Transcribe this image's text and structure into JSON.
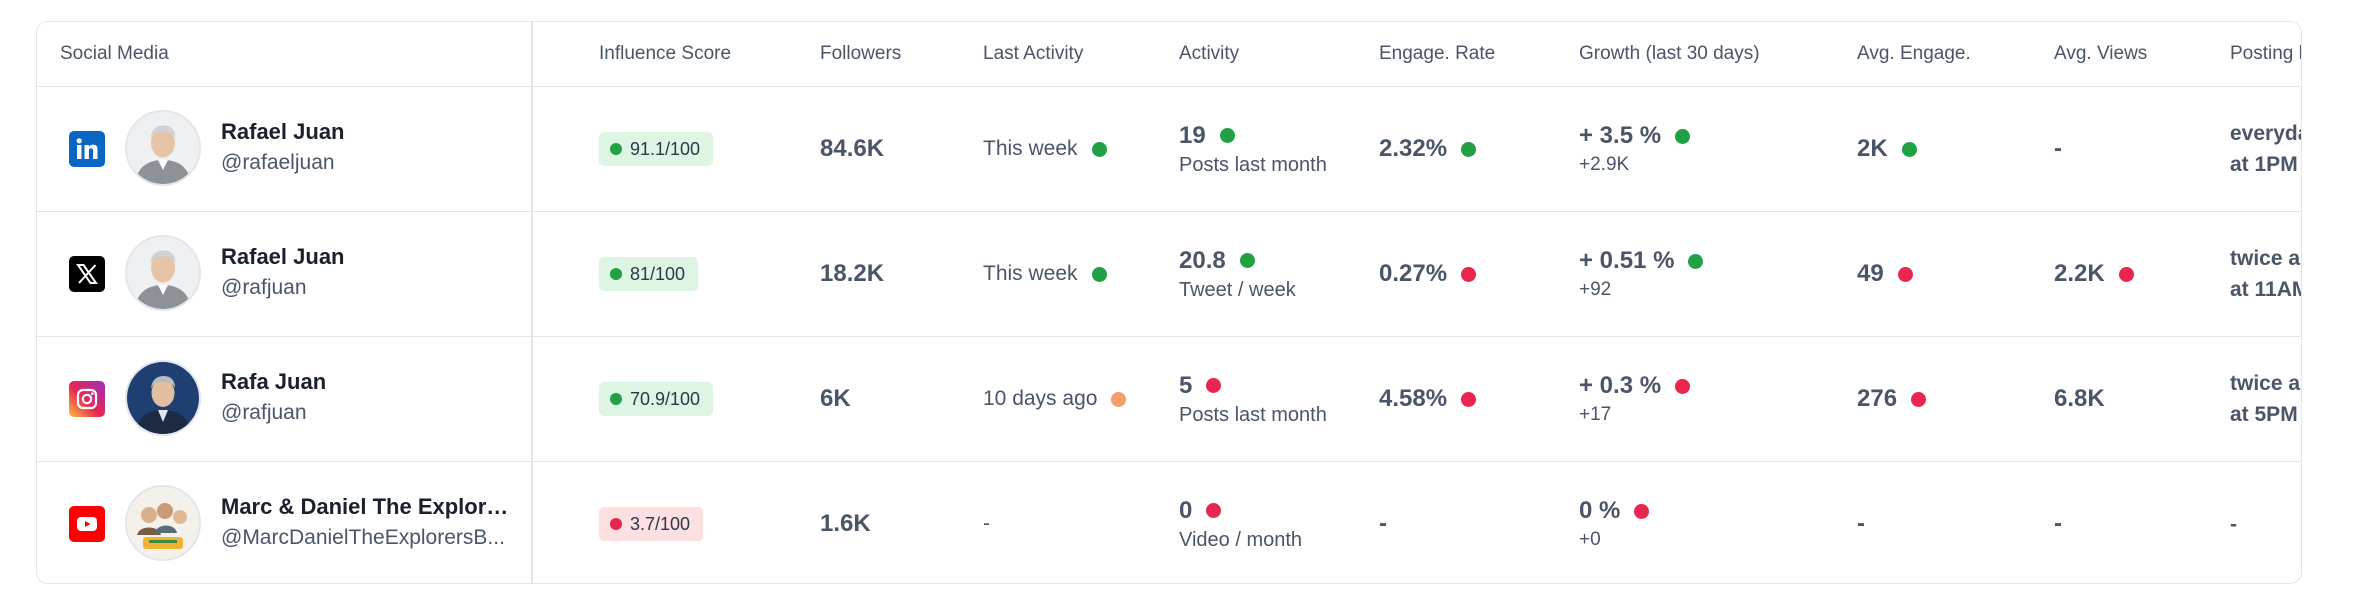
{
  "columns": {
    "social_media": "Social Media",
    "influence_score": "Influence Score",
    "followers": "Followers",
    "last_activity": "Last Activity",
    "activity": "Activity",
    "engage_rate": "Engage. Rate",
    "growth": "Growth (last 30 days)",
    "avg_engage": "Avg. Engage.",
    "avg_views": "Avg. Views",
    "posting_habits": "Posting hab"
  },
  "status_colors": {
    "good": "#22a046",
    "bad": "#e8264f",
    "warn": "#f59d6b"
  },
  "rows": [
    {
      "platform": "linkedin",
      "platform_icon": "linkedin-icon",
      "name": "Rafael Juan",
      "handle": "@rafaeljuan",
      "score": "91.1/100",
      "score_status": "good",
      "followers": "84.6K",
      "last_activity": "This week",
      "last_activity_status": "good",
      "activity_value": "19",
      "activity_status": "good",
      "activity_unit": "Posts last month",
      "engage_rate": "2.32%",
      "engage_rate_status": "good",
      "growth_pct": "+ 3.5 %",
      "growth_status": "good",
      "growth_abs": "+2.9K",
      "avg_engage": "2K",
      "avg_engage_status": "good",
      "avg_views": "-",
      "posting_line1": "everyday",
      "posting_line2": "at 1PM"
    },
    {
      "platform": "x",
      "platform_icon": "x-icon",
      "name": "Rafael Juan",
      "handle": "@rafjuan",
      "score": "81/100",
      "score_status": "good",
      "followers": "18.2K",
      "last_activity": "This week",
      "last_activity_status": "good",
      "activity_value": "20.8",
      "activity_status": "good",
      "activity_unit": "Tweet / week",
      "engage_rate": "0.27%",
      "engage_rate_status": "bad",
      "growth_pct": "+ 0.51 %",
      "growth_status": "good",
      "growth_abs": "+92",
      "avg_engage": "49",
      "avg_engage_status": "bad",
      "avg_views": "2.2K",
      "avg_views_status": "bad",
      "posting_line1": "twice a da",
      "posting_line2": "at 11AM"
    },
    {
      "platform": "instagram",
      "platform_icon": "instagram-icon",
      "name": "Rafa Juan",
      "handle": "@rafjuan",
      "score": "70.9/100",
      "score_status": "good",
      "followers": "6K",
      "last_activity": "10 days ago",
      "last_activity_status": "warn",
      "activity_value": "5",
      "activity_status": "bad",
      "activity_unit": "Posts last month",
      "engage_rate": "4.58%",
      "engage_rate_status": "bad",
      "growth_pct": "+ 0.3 %",
      "growth_status": "bad",
      "growth_abs": "+17",
      "avg_engage": "276",
      "avg_engage_status": "bad",
      "avg_views": "6.8K",
      "posting_line1": "twice a w",
      "posting_line2": "at 5PM"
    },
    {
      "platform": "youtube",
      "platform_icon": "youtube-icon",
      "name": "Marc & Daniel The Explorer...",
      "handle": "@MarcDanielTheExplorersB...",
      "score": "3.7/100",
      "score_status": "bad",
      "followers": "1.6K",
      "last_activity": "-",
      "activity_value": "0",
      "activity_status": "bad",
      "activity_unit": "Video / month",
      "engage_rate": "-",
      "growth_pct": "0 %",
      "growth_status": "bad",
      "growth_abs": "+0",
      "avg_engage": "-",
      "avg_views": "-",
      "posting_line1": "-",
      "posting_line2": ""
    }
  ]
}
